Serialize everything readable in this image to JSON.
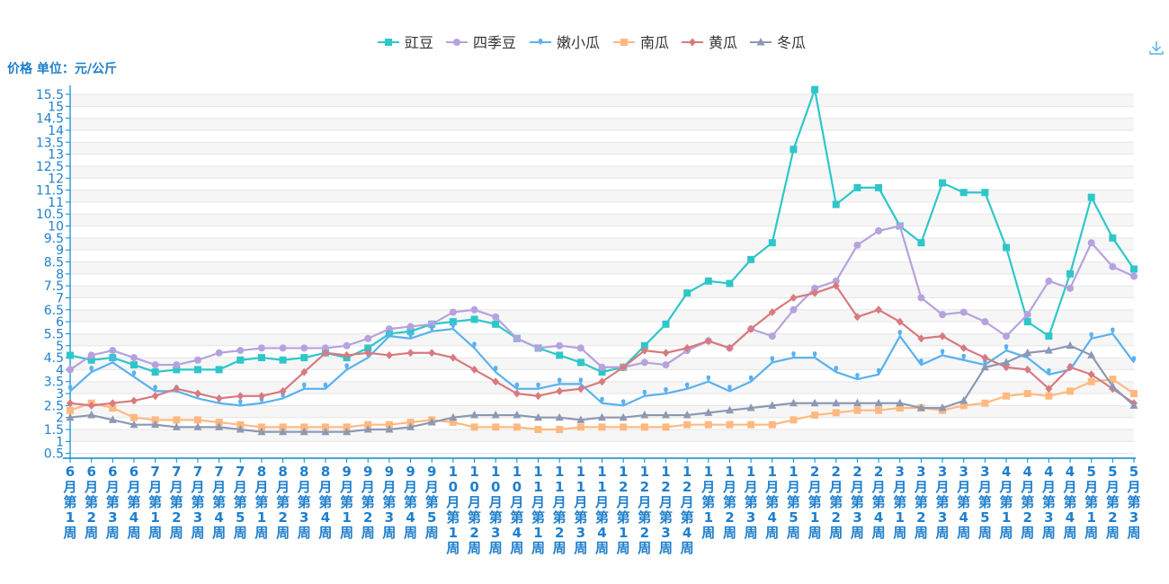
{
  "y_label": "价格 单位：元/公斤",
  "download_icon": "download-icon",
  "chart_data": {
    "type": "line",
    "title": "",
    "xlabel": "",
    "ylabel": "价格 单位：元/公斤",
    "ylim": [
      0.3,
      15.8
    ],
    "legend_position": "top-center",
    "y_ticks": [
      "0.5",
      "1",
      "1.5",
      "2",
      "2.5",
      "3",
      "3.5",
      "4",
      "4.5",
      "5",
      "5.5",
      "6",
      "6.5",
      "7",
      "7.5",
      "8",
      "8.5",
      "9",
      "9.5",
      "10",
      "10.5",
      "11",
      "11.5",
      "12",
      "12.5",
      "13",
      "13.5",
      "14",
      "14.5",
      "15",
      "15.5"
    ],
    "categories": [
      "6月第1周",
      "6月第2周",
      "6月第3周",
      "6月第4周",
      "7月第1周",
      "7月第2周",
      "7月第3周",
      "7月第4周",
      "7月第5周",
      "8月第1周",
      "8月第2周",
      "8月第3周",
      "8月第4周",
      "9月第1周",
      "9月第2周",
      "9月第3周",
      "9月第4周",
      "9月第5周",
      "10月第1周",
      "10月第2周",
      "10月第3周",
      "10月第4周",
      "11月第1周",
      "11月第2周",
      "11月第3周",
      "11月第4周",
      "12月第1周",
      "12月第2周",
      "12月第3周",
      "12月第4周",
      "1月第1周",
      "1月第2周",
      "1月第3周",
      "1月第4周",
      "1月第5周",
      "2月第1周",
      "2月第2周",
      "2月第3周",
      "2月第4周",
      "3月第1周",
      "3月第2周",
      "3月第3周",
      "3月第4周",
      "3月第5周",
      "4月第1周",
      "4月第2周",
      "4月第3周",
      "4月第4周",
      "5月第1周",
      "5月第2周",
      "5月第3周"
    ],
    "series": [
      {
        "name": "豇豆",
        "color": "#2ec7c9",
        "marker": "square",
        "values": [
          4.6,
          4.4,
          4.5,
          4.2,
          3.9,
          4.0,
          4.0,
          4.0,
          4.4,
          4.5,
          4.4,
          4.5,
          4.7,
          4.5,
          4.9,
          5.5,
          5.6,
          5.9,
          6.0,
          6.1,
          5.9,
          5.3,
          4.9,
          4.6,
          4.3,
          3.9,
          4.1,
          5.0,
          5.9,
          7.2,
          7.7,
          7.6,
          8.6,
          9.3,
          13.2,
          15.7,
          10.9,
          11.6,
          11.6,
          10.0,
          9.3,
          11.8,
          11.4,
          11.4,
          9.1,
          6.0,
          5.4,
          8.0,
          11.2,
          9.5,
          8.2
        ]
      },
      {
        "name": "四季豆",
        "color": "#b6a2de",
        "marker": "circle",
        "values": [
          4.0,
          4.6,
          4.8,
          4.5,
          4.2,
          4.2,
          4.4,
          4.7,
          4.8,
          4.9,
          4.9,
          4.9,
          4.9,
          5.0,
          5.3,
          5.7,
          5.8,
          5.9,
          6.4,
          6.5,
          6.2,
          5.3,
          4.9,
          5.0,
          4.9,
          4.1,
          4.1,
          4.3,
          4.2,
          4.8,
          5.2,
          4.9,
          5.7,
          5.4,
          6.5,
          7.4,
          7.7,
          9.2,
          9.8,
          10.0,
          7.0,
          6.3,
          6.4,
          6.0,
          5.4,
          6.3,
          7.7,
          7.4,
          9.3,
          8.3,
          7.9
        ]
      },
      {
        "name": "嫩小瓜",
        "color": "#5ab1ef",
        "marker": "pin",
        "values": [
          3.1,
          3.9,
          4.3,
          3.7,
          3.1,
          3.1,
          2.8,
          2.6,
          2.5,
          2.6,
          2.8,
          3.2,
          3.2,
          4.0,
          4.5,
          5.4,
          5.3,
          5.6,
          5.7,
          4.9,
          3.9,
          3.2,
          3.2,
          3.4,
          3.4,
          2.6,
          2.5,
          2.9,
          3.0,
          3.2,
          3.5,
          3.1,
          3.5,
          4.3,
          4.5,
          4.5,
          3.9,
          3.6,
          3.8,
          5.4,
          4.2,
          4.6,
          4.4,
          4.2,
          4.8,
          4.5,
          3.8,
          4.0,
          5.3,
          5.5,
          4.3
        ]
      },
      {
        "name": "南瓜",
        "color": "#ffb980",
        "marker": "square",
        "values": [
          2.3,
          2.6,
          2.4,
          2.0,
          1.9,
          1.9,
          1.9,
          1.8,
          1.7,
          1.6,
          1.6,
          1.6,
          1.6,
          1.6,
          1.7,
          1.7,
          1.8,
          1.9,
          1.8,
          1.6,
          1.6,
          1.6,
          1.5,
          1.5,
          1.6,
          1.6,
          1.6,
          1.6,
          1.6,
          1.7,
          1.7,
          1.7,
          1.7,
          1.7,
          1.9,
          2.1,
          2.2,
          2.3,
          2.3,
          2.4,
          2.4,
          2.3,
          2.5,
          2.6,
          2.9,
          3.0,
          2.9,
          3.1,
          3.5,
          3.6,
          3.0
        ]
      },
      {
        "name": "黄瓜",
        "color": "#d87a80",
        "marker": "diamond",
        "values": [
          2.6,
          2.5,
          2.6,
          2.7,
          2.9,
          3.2,
          3.0,
          2.8,
          2.9,
          2.9,
          3.1,
          3.9,
          4.7,
          4.6,
          4.7,
          4.6,
          4.7,
          4.7,
          4.5,
          4.0,
          3.5,
          3.0,
          2.9,
          3.1,
          3.2,
          3.5,
          4.1,
          4.8,
          4.7,
          4.9,
          5.2,
          4.9,
          5.7,
          6.4,
          7.0,
          7.2,
          7.5,
          6.2,
          6.5,
          6.0,
          5.3,
          5.4,
          4.9,
          4.5,
          4.1,
          4.0,
          3.2,
          4.1,
          3.8,
          3.2,
          2.6
        ]
      },
      {
        "name": "冬瓜",
        "color": "#8d98b3",
        "marker": "triangle",
        "values": [
          2.0,
          2.1,
          1.9,
          1.7,
          1.7,
          1.6,
          1.6,
          1.6,
          1.5,
          1.4,
          1.4,
          1.4,
          1.4,
          1.4,
          1.5,
          1.5,
          1.6,
          1.8,
          2.0,
          2.1,
          2.1,
          2.1,
          2.0,
          2.0,
          1.9,
          2.0,
          2.0,
          2.1,
          2.1,
          2.1,
          2.2,
          2.3,
          2.4,
          2.5,
          2.6,
          2.6,
          2.6,
          2.6,
          2.6,
          2.6,
          2.4,
          2.4,
          2.7,
          4.1,
          4.3,
          4.7,
          4.8,
          5.0,
          4.6,
          3.3,
          2.5
        ]
      }
    ]
  }
}
